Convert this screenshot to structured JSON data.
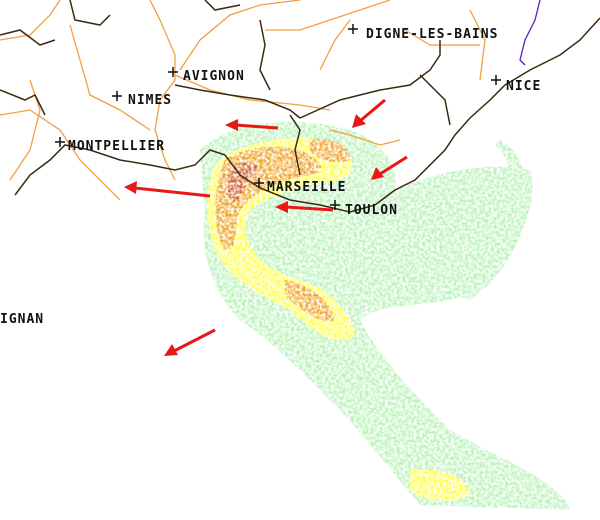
{
  "map": {
    "type": "weather-radar",
    "colors": {
      "background": "#ffffff",
      "coastline": "#3a2a10",
      "department_border": "#f0a040",
      "country_border": "#5a20c0",
      "rain_light": "#b8f2b8",
      "rain_moderate": "#ffff40",
      "rain_heavy": "#f0a020",
      "rain_intense": "#d05a20",
      "arrow": "#e81818"
    },
    "cities": [
      {
        "id": "digne",
        "label": "DIGNE-LES-BAINS"
      },
      {
        "id": "avignon",
        "label": "AVIGNON"
      },
      {
        "id": "nimes",
        "label": "NIMES"
      },
      {
        "id": "nice",
        "label": "NICE"
      },
      {
        "id": "montpellier",
        "label": "MONTPELLIER"
      },
      {
        "id": "marseille",
        "label": "MARSEILLE"
      },
      {
        "id": "toulon",
        "label": "TOULON"
      },
      {
        "id": "perpignan",
        "label": "IGNAN"
      }
    ],
    "arrows_count_shown": 6
  }
}
